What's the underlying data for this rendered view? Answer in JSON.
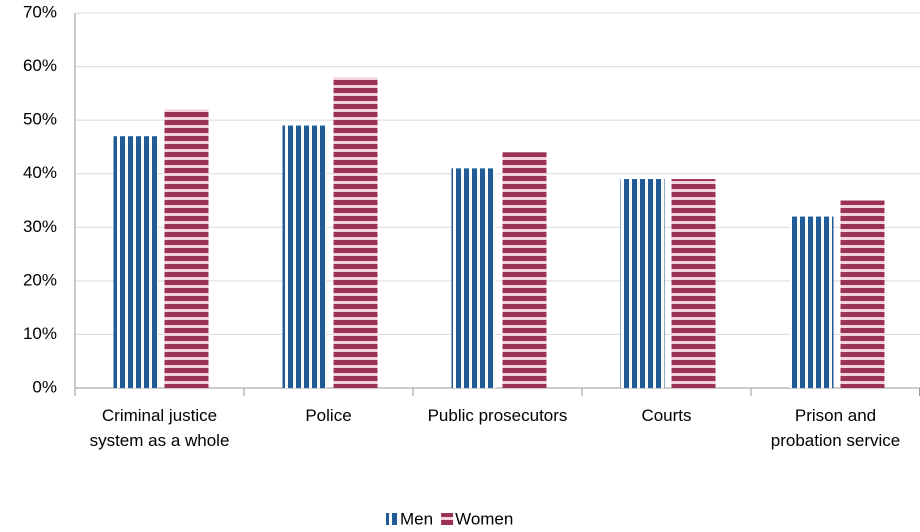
{
  "chart_data": {
    "type": "bar",
    "categories": [
      "Criminal justice system as a whole",
      "Police",
      "Public prosecutors",
      "Courts",
      "Prison and probation service"
    ],
    "series": [
      {
        "name": "Men",
        "color": "#1f5b95",
        "values": [
          47,
          49,
          41,
          39,
          32
        ]
      },
      {
        "name": "Women",
        "color": "#9b3158",
        "values": [
          52,
          58,
          44,
          39,
          35
        ]
      }
    ],
    "ylim": [
      0,
      70
    ],
    "yticks": [
      {
        "value": 0,
        "label": "0%"
      },
      {
        "value": 10,
        "label": "10%"
      },
      {
        "value": 20,
        "label": "20%"
      },
      {
        "value": 30,
        "label": "30%"
      },
      {
        "value": 40,
        "label": "40%"
      },
      {
        "value": 50,
        "label": "50%"
      },
      {
        "value": 60,
        "label": "60%"
      },
      {
        "value": 70,
        "label": "70%"
      }
    ],
    "grid": true,
    "legend": "bottom"
  }
}
